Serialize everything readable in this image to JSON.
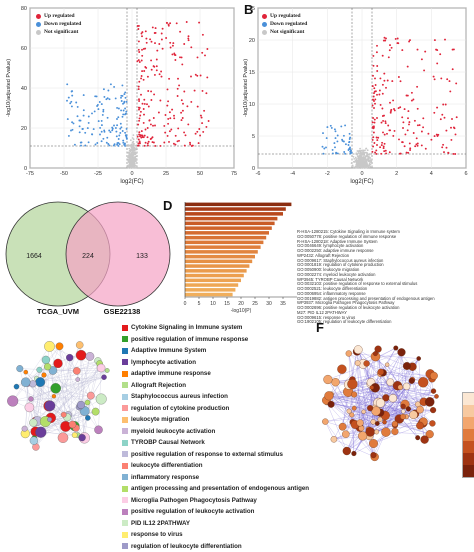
{
  "panel_labels": {
    "B": "B",
    "D": "D",
    "F": "F"
  },
  "panelA": {
    "legend": [
      {
        "label": "Up regulated",
        "color": "#e0243a"
      },
      {
        "label": "Down regulated",
        "color": "#4a90d9"
      },
      {
        "label": "Not significant",
        "color": "#c8c8c8"
      }
    ],
    "xlabel": "log2(FC)",
    "ylabel": "-log10(adjusted Pvalue)",
    "xticks": [
      "-75",
      "-50",
      "-25",
      "0",
      "25",
      "50",
      "75"
    ],
    "yticks": [
      "0",
      "20",
      "40",
      "60",
      "80"
    ]
  },
  "panelB": {
    "legend": [
      {
        "label": "Up regulated",
        "color": "#e0243a"
      },
      {
        "label": "Down regulated",
        "color": "#4a90d9"
      },
      {
        "label": "Not significant",
        "color": "#c8c8c8"
      }
    ],
    "xlabel": "log2(FC)",
    "ylabel": "-log10(adjusted Pvalue)",
    "xticks": [
      "-6",
      "-4",
      "-2",
      "0",
      "2",
      "4",
      "6"
    ],
    "yticks": [
      "0",
      "5",
      "10",
      "15",
      "20",
      "25"
    ]
  },
  "venn": {
    "left_only": "1664",
    "overlap": "224",
    "right_only": "133",
    "left_name": "TCGA_UVM",
    "right_name": "GSE22138",
    "left_color": "#b7d7a0",
    "right_color": "#f5a3c4"
  },
  "chart_data": {
    "type": "bar",
    "orientation": "horizontal",
    "categories": [
      "R-HSA-1280215: Cytokine Signaling in Immune system",
      "GO:0050778: positive regulation of immune response",
      "R-HSA-1280218: Adaptive Immune System",
      "GO:0046649: lymphocyte activation",
      "GO:0002250: adaptive immune response",
      "WP2432: Allograft Rejection",
      "GO:0009617: Staphylococcus aureus infection",
      "GO:0001819: regulation of cytokine production",
      "GO:0050900: leukocyte migration",
      "GO:0002274: myeloid leukocyte activation",
      "WP3945: TYROBP Causal Network",
      "GO:0032103: positive regulation of response to external stimulus",
      "GO:0002521: leukocyte differentiation",
      "GO:0006954: inflammatory response",
      "GO:0019882: antigen processing and presentation of endogenous antigen",
      "WP3937: Microglia Pathogen Phagocytosis Pathway",
      "GO:0002696: positive regulation of leukocyte activation",
      "M27: PID IL12 2PATHWAY",
      "GO:0009615: response to virus",
      "GO:1902105: regulation of leukocyte differentiation"
    ],
    "values": [
      38,
      36,
      35,
      33,
      32,
      31,
      30,
      29,
      28,
      27,
      26,
      25,
      24,
      23,
      22,
      21,
      20,
      19,
      18,
      17
    ],
    "xlabel": "-log10(P)",
    "xticks": [
      "0",
      "5",
      "10",
      "15",
      "20",
      "25",
      "30",
      "35"
    ],
    "xlim": [
      0,
      40
    ],
    "colors": [
      "#8b2d10",
      "#a63a16",
      "#b8481c",
      "#c25322",
      "#c95c27",
      "#cf642b",
      "#d46b30",
      "#d87234",
      "#dc7938",
      "#df7f3c",
      "#e2853f",
      "#e48b43",
      "#e69146",
      "#e89649",
      "#ea9b4c",
      "#ec9f4f",
      "#eda352",
      "#eea755",
      "#efab58",
      "#f0ae5b"
    ]
  },
  "panelE_terms": [
    {
      "label": "Cytokine Signaling in Immune system",
      "color": "#e31a1c"
    },
    {
      "label": "positive regulation of immune response",
      "color": "#33a02c"
    },
    {
      "label": "Adaptive Immune System",
      "color": "#1f78b4"
    },
    {
      "label": "lymphocyte activation",
      "color": "#6a3d9a"
    },
    {
      "label": "adaptive immune response",
      "color": "#ff7f00"
    },
    {
      "label": "Allograft Rejection",
      "color": "#b2df8a"
    },
    {
      "label": "Staphylococcus aureus infection",
      "color": "#a6cee3"
    },
    {
      "label": "regulation of cytokine production",
      "color": "#fb9a99"
    },
    {
      "label": "leukocyte migration",
      "color": "#fdbf6f"
    },
    {
      "label": "myeloid leukocyte activation",
      "color": "#cab2d6"
    },
    {
      "label": "TYROBP Causal Network",
      "color": "#8dd3c7"
    },
    {
      "label": "positive regulation of response to external stimulus",
      "color": "#bebada"
    },
    {
      "label": "leukocyte differentiation",
      "color": "#fb8072"
    },
    {
      "label": "inflammatory response",
      "color": "#80b1d3"
    },
    {
      "label": "antigen processing and presentation of endogenous antigen",
      "color": "#b3de69"
    },
    {
      "label": "Microglia Pathogen Phagocytosis Pathway",
      "color": "#fccde5"
    },
    {
      "label": "positive regulation of leukocyte activation",
      "color": "#bc80bd"
    },
    {
      "label": "PID IL12 2PATHWAY",
      "color": "#ccebc5"
    },
    {
      "label": "response to virus",
      "color": "#ffed6f"
    },
    {
      "label": "regulation of leukocyte differentiation",
      "color": "#9e9ac8"
    }
  ],
  "panelF_scale": [
    "#fbe7d3",
    "#f7c9a0",
    "#f2a66e",
    "#e07b3d",
    "#c4511f",
    "#9e3312",
    "#7a220c"
  ]
}
